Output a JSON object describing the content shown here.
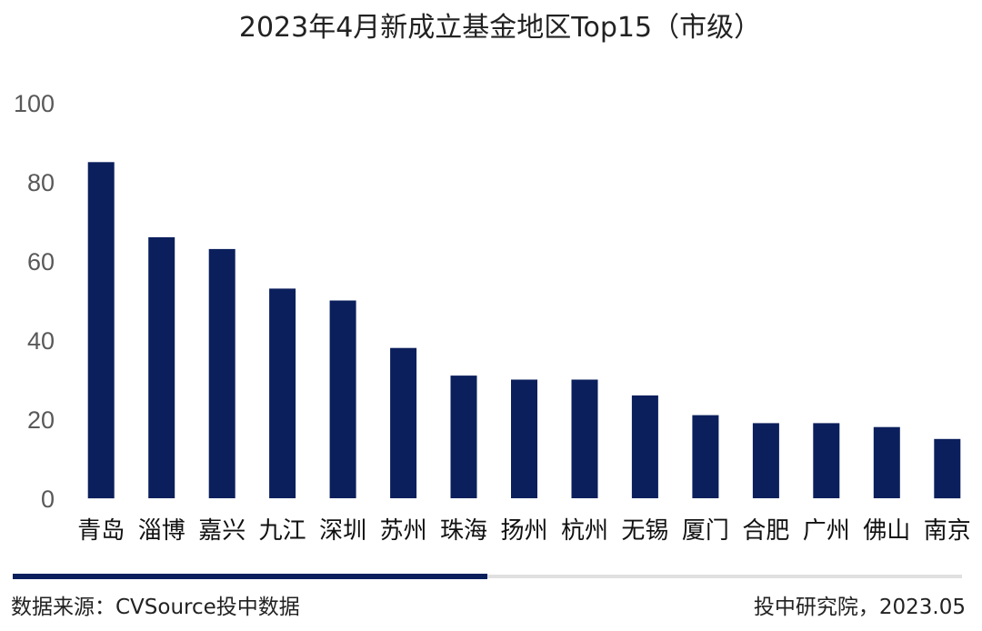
{
  "chart_data": {
    "type": "bar",
    "title": "2023年4月新成立基金地区Top15（市级）",
    "xlabel": "",
    "ylabel": "",
    "ylim": [
      0,
      100
    ],
    "yticks": [
      "0",
      "20",
      "40",
      "60",
      "80",
      "100"
    ],
    "grid": false,
    "legend": "none",
    "categories": [
      "青岛",
      "淄博",
      "嘉兴",
      "九江",
      "深圳",
      "苏州",
      "珠海",
      "扬州",
      "杭州",
      "无锡",
      "厦门",
      "合肥",
      "广州",
      "佛山",
      "南京"
    ],
    "values": [
      85,
      66,
      63,
      53,
      50,
      38,
      31,
      30,
      30,
      26,
      21,
      19,
      19,
      18,
      15
    ],
    "bar_color": "#0b1f5c"
  },
  "footer": {
    "source": "数据来源：CVSource投中数据",
    "credit": "投中研究院，2023.05",
    "accent_color": "#0b1f5c",
    "track_color": "#e0e0e0"
  }
}
